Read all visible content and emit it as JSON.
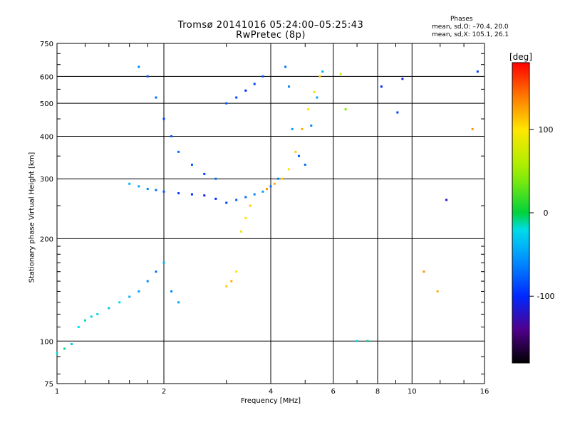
{
  "header": {
    "title_line1": "Tromsø 20141016 05:24:00–05:25:43",
    "title_line2": "RwPretec (8p)",
    "stats_heading": "Phases",
    "stats_line1": "mean, sd,O: –70.4, 20.0",
    "stats_line2": "mean, sd,X: 105.1, 26.1"
  },
  "colors": {
    "ordinary_trace": "#1a6bd6",
    "ordinary_trace_light": "#2ec4e8",
    "extraordinary_trace": "#ff8c00",
    "gridline": "#000000"
  },
  "chart_data": {
    "type": "scatter",
    "xlabel": "Frequency [MHz]",
    "ylabel": "Stationary phase Virtual Height [km]",
    "xscale": "log",
    "yscale": "log",
    "xlim": [
      1,
      16
    ],
    "ylim": [
      75,
      750
    ],
    "xticks": [
      1,
      2,
      4,
      6,
      8,
      10,
      16
    ],
    "yticks": [
      75,
      100,
      200,
      300,
      400,
      500,
      600,
      750
    ],
    "grid": true,
    "colorbar": {
      "label": "[deg]",
      "ticks": [
        100,
        0,
        -100
      ],
      "range": [
        -180,
        180
      ],
      "colormap": "rainbow",
      "placement": "right"
    },
    "series": [
      {
        "x": [
          1.0,
          1.05,
          1.1,
          1.15,
          1.2,
          1.25,
          1.3,
          1.4,
          1.5,
          1.6,
          1.7,
          1.8,
          1.9,
          2.0,
          2.1,
          2.2
        ],
        "y": [
          92,
          95,
          98,
          110,
          115,
          118,
          120,
          125,
          130,
          135,
          140,
          150,
          160,
          170,
          140,
          130
        ],
        "phase": [
          -20,
          -10,
          -30,
          -20,
          -15,
          -25,
          -20,
          -30,
          -20,
          -40,
          -50,
          -60,
          -70,
          -40,
          -60,
          -50
        ]
      },
      {
        "x": [
          1.6,
          1.7,
          1.8,
          1.9,
          2.0,
          2.2,
          2.4,
          2.6,
          2.8,
          3.0,
          3.2,
          3.4,
          3.6,
          3.8,
          4.0,
          4.2
        ],
        "y": [
          290,
          285,
          280,
          278,
          275,
          272,
          270,
          268,
          262,
          255,
          260,
          265,
          270,
          275,
          285,
          300
        ],
        "phase": [
          -40,
          -50,
          -60,
          -70,
          -80,
          -90,
          -100,
          -110,
          -100,
          -90,
          -80,
          -70,
          -60,
          -50,
          -70,
          -60
        ]
      },
      {
        "x": [
          1.7,
          1.8,
          1.9,
          2.0,
          2.1,
          2.2,
          2.4,
          2.6,
          2.8,
          3.0,
          3.2,
          3.4,
          3.6,
          3.8
        ],
        "y": [
          640,
          600,
          520,
          450,
          400,
          360,
          330,
          310,
          300,
          500,
          520,
          545,
          570,
          600
        ],
        "phase": [
          -60,
          -80,
          -70,
          -90,
          -80,
          -70,
          -80,
          -90,
          -70,
          -80,
          -90,
          -100,
          -90,
          -80
        ]
      },
      {
        "x": [
          4.4,
          4.5,
          4.6,
          4.8,
          5.0,
          5.2,
          5.4,
          5.6
        ],
        "y": [
          640,
          560,
          420,
          350,
          330,
          430,
          520,
          620
        ],
        "phase": [
          -70,
          -60,
          -50,
          -80,
          -70,
          -60,
          -50,
          -40
        ]
      },
      {
        "x": [
          3.9,
          4.1,
          4.3,
          4.5,
          4.7,
          4.9,
          5.1,
          5.3,
          5.5
        ],
        "y": [
          280,
          290,
          300,
          320,
          360,
          420,
          480,
          540,
          600
        ],
        "phase": [
          130,
          120,
          110,
          100,
          110,
          120,
          100,
          90,
          110
        ]
      },
      {
        "x": [
          3.0,
          3.1,
          3.2,
          3.3,
          3.4,
          3.5
        ],
        "y": [
          145,
          150,
          160,
          210,
          230,
          250
        ],
        "phase": [
          110,
          120,
          100,
          90,
          100,
          110
        ]
      },
      {
        "x": [
          6.3,
          6.5,
          7.0,
          7.5,
          8.2,
          9.1,
          9.4,
          10.8,
          11.8,
          12.5,
          14.8,
          15.3
        ],
        "y": [
          610,
          480,
          100,
          100,
          560,
          470,
          590,
          160,
          140,
          260,
          420,
          620
        ],
        "phase": [
          80,
          40,
          -20,
          -10,
          -100,
          -90,
          -110,
          130,
          120,
          -120,
          130,
          -90
        ]
      }
    ]
  }
}
